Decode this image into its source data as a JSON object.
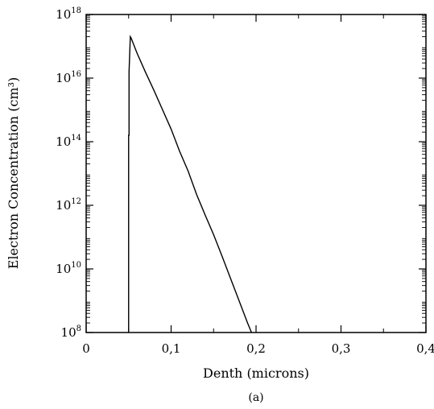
{
  "chart_data": {
    "type": "line",
    "caption": "(a)",
    "xlabel": "Denth (microns)",
    "ylabel": "Electron Concentration (cm³)",
    "xlim": [
      0,
      0.4
    ],
    "ylim": [
      100000000.0,
      1e+18
    ],
    "yscale": "log",
    "grid": false,
    "x_ticks": [
      0,
      0.1,
      0.2,
      0.3,
      0.4
    ],
    "x_tick_labels": [
      "0",
      "0,1",
      "0,2",
      "0,3",
      "0,4"
    ],
    "y_ticks": [
      {
        "value": 100000000.0,
        "base": "10",
        "exp": "8"
      },
      {
        "value": 10000000000.0,
        "base": "10",
        "exp": "10"
      },
      {
        "value": 1000000000000.0,
        "base": "10",
        "exp": "12"
      },
      {
        "value": 100000000000000.0,
        "base": "10",
        "exp": "14"
      },
      {
        "value": 1e+16,
        "base": "10",
        "exp": "16"
      },
      {
        "value": 1e+18,
        "base": "10",
        "exp": "18"
      }
    ],
    "series": [
      {
        "color": "#000000",
        "x": [
          0.05,
          0.05,
          0.0505,
          0.0505,
          0.052,
          0.053,
          0.06,
          0.07,
          0.08,
          0.09,
          0.1,
          0.11,
          0.12,
          0.13,
          0.14,
          0.15,
          0.16,
          0.17,
          0.18,
          0.19,
          0.2,
          0.208
        ],
        "y": [
          100000000.0,
          160000000000000.0,
          160000000000000.0,
          1.6e+16,
          2e+17,
          1.8e+17,
          6e+16,
          1.5e+16,
          4000000000000000.0,
          1000000000000000.0,
          250000000000000.0,
          50000000000000.0,
          12000000000000.0,
          2200000000000.0,
          500000000000.0,
          120000000000.0,
          25000000000.0,
          5000000000.0,
          1000000000.0,
          200000000.0,
          45000000.0,
          100000000.0
        ]
      }
    ]
  }
}
